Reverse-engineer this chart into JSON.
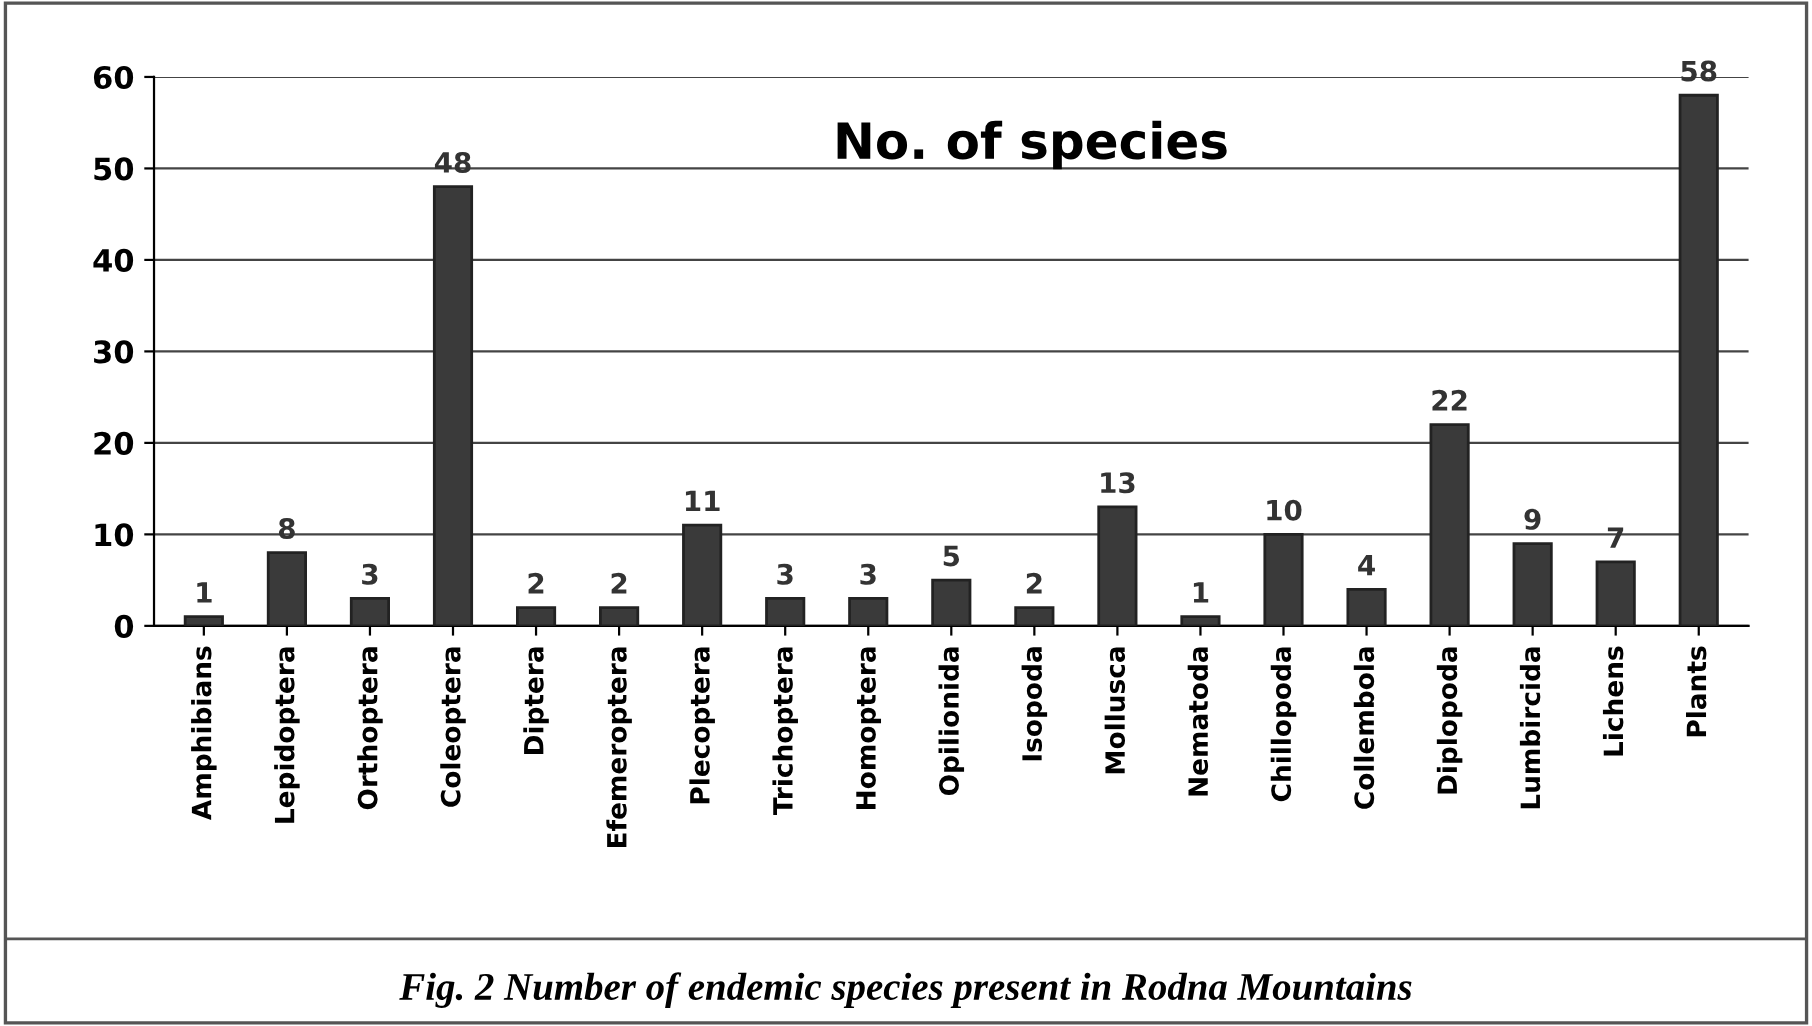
{
  "chart_data": {
    "type": "bar",
    "title": "No. of species",
    "categories": [
      "Amphibians",
      "Lepidoptera",
      "Orthoptera",
      "Coleoptera",
      "Diptera",
      "Efemeroptera",
      "Plecoptera",
      "Trichoptera",
      "Homoptera",
      "Opilionida",
      "Isopoda",
      "Mollusca",
      "Nematoda",
      "Chillopoda",
      "Collembola",
      "Diplopoda",
      "Lumbircida",
      "Lichens",
      "Plants"
    ],
    "values": [
      1,
      8,
      3,
      48,
      2,
      2,
      11,
      3,
      3,
      5,
      2,
      13,
      1,
      10,
      4,
      22,
      9,
      7,
      58
    ],
    "color": "#3a3a3a",
    "ylim": [
      0,
      60
    ],
    "yticks": [
      0,
      10,
      20,
      30,
      40,
      50,
      60
    ],
    "grid": "y",
    "data_labels": true,
    "annotations": [
      "Fig. 2 Number of endemic species present in Rodna Mountains"
    ]
  }
}
